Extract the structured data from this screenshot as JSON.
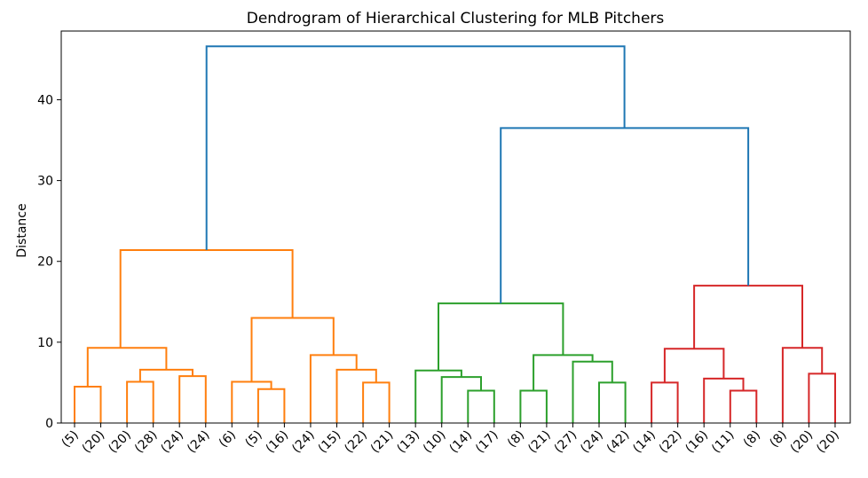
{
  "chart_data": {
    "type": "dendrogram",
    "title": "Dendrogram of Hierarchical Clustering for MLB Pitchers",
    "xlabel": "",
    "ylabel": "Distance",
    "ylim": [
      0,
      48.5
    ],
    "y_ticks": [
      0,
      10,
      20,
      30,
      40
    ],
    "grid": false,
    "leaf_labels": [
      "(5)",
      "(20)",
      "(20)",
      "(28)",
      "(24)",
      "(24)",
      "(6)",
      "(5)",
      "(16)",
      "(24)",
      "(15)",
      "(22)",
      "(21)",
      "(13)",
      "(10)",
      "(14)",
      "(17)",
      "(8)",
      "(21)",
      "(27)",
      "(24)",
      "(42)",
      "(14)",
      "(22)",
      "(16)",
      "(11)",
      "(8)",
      "(8)",
      "(20)",
      "(20)"
    ],
    "colors": {
      "orange": "#ff7f0e",
      "green": "#2ca02c",
      "red": "#d62728",
      "blue": "#1f77b4"
    },
    "merges": [
      {
        "x": [
          0,
          0,
          1,
          1
        ],
        "y": [
          0,
          4.5,
          4.5,
          0
        ],
        "color": "orange"
      },
      {
        "x": [
          2,
          2,
          3,
          3
        ],
        "y": [
          0,
          5.1,
          5.1,
          0
        ],
        "color": "orange"
      },
      {
        "x": [
          4,
          4,
          5,
          5
        ],
        "y": [
          0,
          5.8,
          5.8,
          0
        ],
        "color": "orange"
      },
      {
        "x": [
          2.5,
          2.5,
          4.5,
          4.5
        ],
        "y": [
          5.1,
          6.6,
          6.6,
          5.8
        ],
        "color": "orange"
      },
      {
        "x": [
          0.5,
          0.5,
          3.5,
          3.5
        ],
        "y": [
          4.5,
          9.3,
          9.3,
          6.6
        ],
        "color": "orange"
      },
      {
        "x": [
          7,
          7,
          8,
          8
        ],
        "y": [
          0,
          4.2,
          4.2,
          0
        ],
        "color": "orange"
      },
      {
        "x": [
          6,
          6,
          7.5,
          7.5
        ],
        "y": [
          0,
          5.1,
          5.1,
          4.2
        ],
        "color": "orange"
      },
      {
        "x": [
          11,
          11,
          12,
          12
        ],
        "y": [
          0,
          5.0,
          5.0,
          0
        ],
        "color": "orange"
      },
      {
        "x": [
          10,
          10,
          11.5,
          11.5
        ],
        "y": [
          0,
          6.6,
          6.6,
          5.0
        ],
        "color": "orange"
      },
      {
        "x": [
          9,
          9,
          10.75,
          10.75
        ],
        "y": [
          0,
          8.4,
          8.4,
          6.6
        ],
        "color": "orange"
      },
      {
        "x": [
          6.75,
          6.75,
          9.875,
          9.875
        ],
        "y": [
          5.1,
          13.0,
          13.0,
          8.4
        ],
        "color": "orange"
      },
      {
        "x": [
          1.75,
          1.75,
          8.3125,
          8.3125
        ],
        "y": [
          9.3,
          21.4,
          21.4,
          13.0
        ],
        "color": "orange"
      },
      {
        "x": [
          15,
          15,
          16,
          16
        ],
        "y": [
          0,
          4.0,
          4.0,
          0
        ],
        "color": "green"
      },
      {
        "x": [
          14,
          14,
          15.5,
          15.5
        ],
        "y": [
          0,
          5.7,
          5.7,
          4.0
        ],
        "color": "green"
      },
      {
        "x": [
          13,
          13,
          14.75,
          14.75
        ],
        "y": [
          0,
          6.5,
          6.5,
          5.7
        ],
        "color": "green"
      },
      {
        "x": [
          17,
          17,
          18,
          18
        ],
        "y": [
          0,
          4.0,
          4.0,
          0
        ],
        "color": "green"
      },
      {
        "x": [
          20,
          20,
          21,
          21
        ],
        "y": [
          0,
          5.0,
          5.0,
          0
        ],
        "color": "green"
      },
      {
        "x": [
          19,
          19,
          20.5,
          20.5
        ],
        "y": [
          0,
          7.6,
          7.6,
          5.0
        ],
        "color": "green"
      },
      {
        "x": [
          17.5,
          17.5,
          19.75,
          19.75
        ],
        "y": [
          4.0,
          8.4,
          8.4,
          7.6
        ],
        "color": "green"
      },
      {
        "x": [
          13.875,
          13.875,
          18.625,
          18.625
        ],
        "y": [
          6.5,
          14.8,
          14.8,
          8.4
        ],
        "color": "green"
      },
      {
        "x": [
          22,
          22,
          23,
          23
        ],
        "y": [
          0,
          5.0,
          5.0,
          0
        ],
        "color": "red"
      },
      {
        "x": [
          25,
          25,
          26,
          26
        ],
        "y": [
          0,
          4.0,
          4.0,
          0
        ],
        "color": "red"
      },
      {
        "x": [
          24,
          24,
          25.5,
          25.5
        ],
        "y": [
          0,
          5.5,
          5.5,
          4.0
        ],
        "color": "red"
      },
      {
        "x": [
          22.5,
          22.5,
          24.75,
          24.75
        ],
        "y": [
          5.0,
          9.2,
          9.2,
          5.5
        ],
        "color": "red"
      },
      {
        "x": [
          28,
          28,
          29,
          29
        ],
        "y": [
          0,
          6.1,
          6.1,
          0
        ],
        "color": "red"
      },
      {
        "x": [
          27,
          27,
          28.5,
          28.5
        ],
        "y": [
          0,
          9.3,
          9.3,
          6.1
        ],
        "color": "red"
      },
      {
        "x": [
          23.625,
          23.625,
          27.75,
          27.75
        ],
        "y": [
          9.2,
          17.0,
          17.0,
          9.3
        ],
        "color": "red"
      },
      {
        "x": [
          16.25,
          16.25,
          25.6875,
          25.6875
        ],
        "y": [
          14.8,
          36.5,
          36.5,
          17.0
        ],
        "color": "blue"
      },
      {
        "x": [
          5.03125,
          5.03125,
          20.96875,
          20.96875
        ],
        "y": [
          21.4,
          46.6,
          46.6,
          36.5
        ],
        "color": "blue"
      }
    ]
  }
}
